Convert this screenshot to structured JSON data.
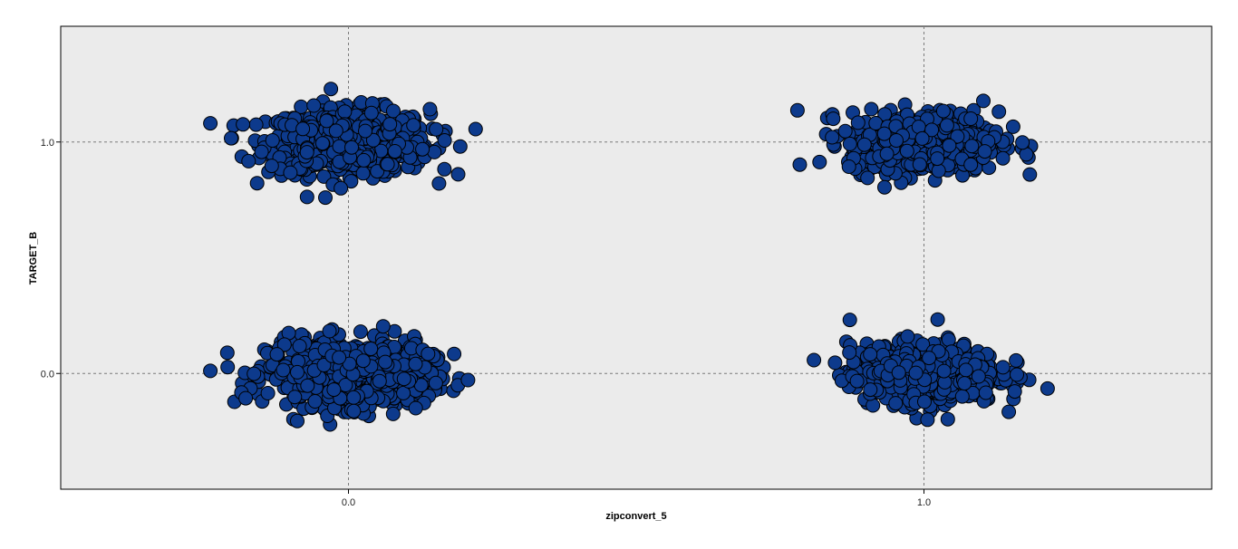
{
  "chart_data": {
    "type": "scatter",
    "title": "",
    "xlabel": "zipconvert_5",
    "ylabel": "TARGET_B",
    "xlim": [
      -0.5,
      1.5
    ],
    "ylim": [
      -0.5,
      1.5
    ],
    "x_ticks": [
      {
        "value": 0.0,
        "label": "0.0"
      },
      {
        "value": 1.0,
        "label": "1.0"
      }
    ],
    "y_ticks": [
      {
        "value": 0.0,
        "label": "0.0"
      },
      {
        "value": 1.0,
        "label": "1.0"
      }
    ],
    "grid": true,
    "legend": "none",
    "clusters": [
      {
        "x": 0,
        "y": 1,
        "jitter_sd": 0.07,
        "count": 750
      },
      {
        "x": 0,
        "y": 0,
        "jitter_sd": 0.07,
        "count": 750
      },
      {
        "x": 1,
        "y": 1,
        "jitter_sd": 0.065,
        "count": 560
      },
      {
        "x": 1,
        "y": 0,
        "jitter_sd": 0.065,
        "count": 560
      }
    ],
    "colors": {
      "point_fill": "#0d3a8c",
      "point_stroke": "#000000",
      "plot_background": "#ebebeb",
      "grid": "#7a7a7a"
    }
  }
}
